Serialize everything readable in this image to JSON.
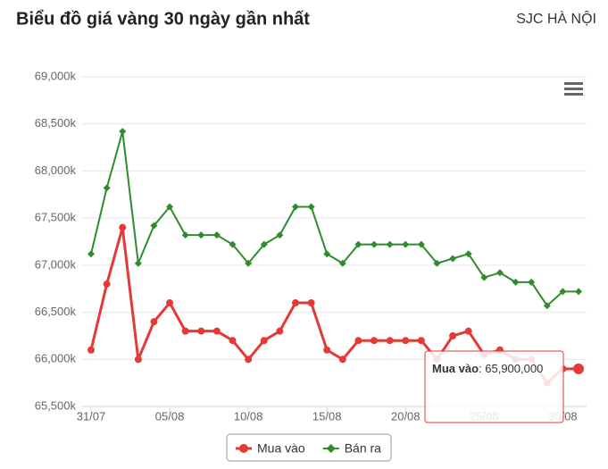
{
  "chart_data": {
    "type": "line",
    "title": "Biểu đồ giá vàng 30 ngày gần nhất",
    "subtitle": "SJC HÀ NỘI",
    "categories": [
      "31/07",
      null,
      null,
      null,
      null,
      "05/08",
      null,
      null,
      null,
      null,
      "10/08",
      null,
      null,
      null,
      null,
      "15/08",
      null,
      null,
      null,
      null,
      "20/08",
      null,
      null,
      null,
      null,
      "25/08",
      null,
      null,
      null,
      null,
      "30/08",
      null
    ],
    "series": [
      {
        "name": "Mua vào",
        "color": "#e53935",
        "values": [
          66100,
          66800,
          67400,
          66000,
          66400,
          66600,
          66300,
          66300,
          66300,
          66200,
          66000,
          66200,
          66300,
          66600,
          66600,
          66100,
          66000,
          66200,
          66200,
          66200,
          66200,
          66200,
          66000,
          66250,
          66300,
          66050,
          66100,
          66000,
          66000,
          65750,
          65900,
          65900
        ]
      },
      {
        "name": "Bán ra",
        "color": "#2e8b2e",
        "values": [
          67120,
          67820,
          68420,
          67020,
          67420,
          67620,
          67320,
          67320,
          67320,
          67220,
          67020,
          67220,
          67320,
          67620,
          67620,
          67120,
          67020,
          67220,
          67220,
          67220,
          67220,
          67220,
          67020,
          67070,
          67120,
          66870,
          66920,
          66820,
          66820,
          66570,
          66720,
          66720
        ]
      }
    ],
    "ylim": [
      65500,
      69000
    ],
    "yticks": [
      {
        "value": 65500,
        "label": "65,500k"
      },
      {
        "value": 66000,
        "label": "66,000k"
      },
      {
        "value": 66500,
        "label": "66,500k"
      },
      {
        "value": 67000,
        "label": "67,000k"
      },
      {
        "value": 67500,
        "label": "67,500k"
      },
      {
        "value": 68000,
        "label": "68,000k"
      },
      {
        "value": 68500,
        "label": "68,500k"
      },
      {
        "value": 69000,
        "label": "69,000k"
      }
    ],
    "grid": true,
    "tooltip": {
      "label": "Mua vào",
      "value": "65,900,000"
    }
  }
}
